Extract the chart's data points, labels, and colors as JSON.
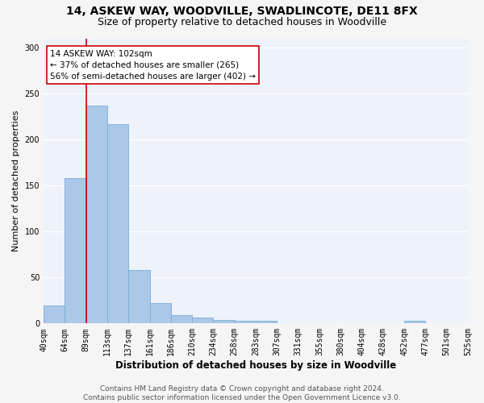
{
  "title": "14, ASKEW WAY, WOODVILLE, SWADLINCOTE, DE11 8FX",
  "subtitle": "Size of property relative to detached houses in Woodville",
  "xlabel": "Distribution of detached houses by size in Woodville",
  "ylabel": "Number of detached properties",
  "bar_values": [
    20,
    158,
    237,
    217,
    58,
    22,
    9,
    6,
    4,
    3,
    3,
    0,
    0,
    0,
    0,
    0,
    0,
    3,
    0,
    0
  ],
  "categories": [
    "40sqm",
    "64sqm",
    "89sqm",
    "113sqm",
    "137sqm",
    "161sqm",
    "186sqm",
    "210sqm",
    "234sqm",
    "258sqm",
    "283sqm",
    "307sqm",
    "331sqm",
    "355sqm",
    "380sqm",
    "404sqm",
    "428sqm",
    "452sqm",
    "477sqm",
    "501sqm",
    "525sqm"
  ],
  "bar_color": "#aac8e8",
  "bar_edge_color": "#7aadd4",
  "vline_x": 2.0,
  "vline_color": "#cc0000",
  "annotation_text": "14 ASKEW WAY: 102sqm\n← 37% of detached houses are smaller (265)\n56% of semi-detached houses are larger (402) →",
  "annotation_box_color": "#ffffff",
  "annotation_border_color": "#cc0000",
  "ylim": [
    0,
    310
  ],
  "yticks": [
    0,
    50,
    100,
    150,
    200,
    250,
    300
  ],
  "footer_text": "Contains HM Land Registry data © Crown copyright and database right 2024.\nContains public sector information licensed under the Open Government Licence v3.0.",
  "bg_color": "#eef2fa",
  "fig_bg_color": "#f5f5f5",
  "grid_color": "#ffffff",
  "title_fontsize": 10,
  "subtitle_fontsize": 9,
  "xlabel_fontsize": 8.5,
  "ylabel_fontsize": 8,
  "tick_fontsize": 7,
  "footer_fontsize": 6.5,
  "annotation_fontsize": 7.5
}
